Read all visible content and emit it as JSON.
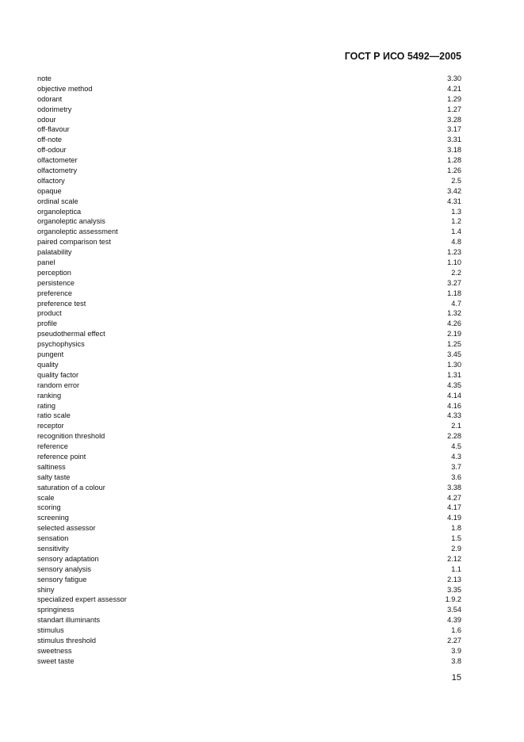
{
  "header": {
    "title": "ГОСТ Р ИСО 5492—2005"
  },
  "entries": [
    {
      "term": "note",
      "ref": "3.30"
    },
    {
      "term": "objective method",
      "ref": "4.21"
    },
    {
      "term": "odorant",
      "ref": "1.29"
    },
    {
      "term": "odorimetry",
      "ref": "1.27"
    },
    {
      "term": "odour",
      "ref": "3.28"
    },
    {
      "term": "off-flavour",
      "ref": "3.17"
    },
    {
      "term": "off-note",
      "ref": "3.31"
    },
    {
      "term": "off-odour",
      "ref": "3.18"
    },
    {
      "term": "olfactometer",
      "ref": "1.28"
    },
    {
      "term": "olfactometry",
      "ref": "1.26"
    },
    {
      "term": "olfactory",
      "ref": "2.5"
    },
    {
      "term": "opaque",
      "ref": "3.42"
    },
    {
      "term": "ordinal scale",
      "ref": "4.31"
    },
    {
      "term": "organoleptica",
      "ref": "1.3"
    },
    {
      "term": "organoleptic analysis",
      "ref": "1.2"
    },
    {
      "term": "organoleptic assessment",
      "ref": "1.4"
    },
    {
      "term": "paired comparison test",
      "ref": "4.8"
    },
    {
      "term": "palatability",
      "ref": "1.23"
    },
    {
      "term": "panel",
      "ref": "1.10"
    },
    {
      "term": "perception",
      "ref": "2.2"
    },
    {
      "term": "persistence",
      "ref": "3.27"
    },
    {
      "term": "preference",
      "ref": "1.18"
    },
    {
      "term": "preference test",
      "ref": "4.7"
    },
    {
      "term": "product",
      "ref": "1.32"
    },
    {
      "term": "profile",
      "ref": "4.26"
    },
    {
      "term": "pseudothermal effect",
      "ref": "2.19"
    },
    {
      "term": "psychophysics",
      "ref": "1.25"
    },
    {
      "term": "pungent",
      "ref": "3.45"
    },
    {
      "term": "quality",
      "ref": "1.30"
    },
    {
      "term": "quality factor",
      "ref": "1.31"
    },
    {
      "term": "random error",
      "ref": "4.35"
    },
    {
      "term": "ranking",
      "ref": "4.14"
    },
    {
      "term": "rating",
      "ref": "4.16"
    },
    {
      "term": "ratio scale",
      "ref": "4.33"
    },
    {
      "term": "receptor",
      "ref": "2.1"
    },
    {
      "term": "recognition threshold",
      "ref": "2.28"
    },
    {
      "term": "reference",
      "ref": "4.5"
    },
    {
      "term": "reference point",
      "ref": "4.3"
    },
    {
      "term": "saltiness",
      "ref": "3.7"
    },
    {
      "term": "salty taste",
      "ref": "3.6"
    },
    {
      "term": "saturation of a colour",
      "ref": "3.38"
    },
    {
      "term": "scale",
      "ref": "4.27"
    },
    {
      "term": "scoring",
      "ref": "4.17"
    },
    {
      "term": "screening",
      "ref": "4.19"
    },
    {
      "term": "selected assessor",
      "ref": "1.8"
    },
    {
      "term": "sensation",
      "ref": "1.5"
    },
    {
      "term": "sensitivity",
      "ref": "2.9"
    },
    {
      "term": "sensory adaptation",
      "ref": "2.12"
    },
    {
      "term": "sensory analysis",
      "ref": "1.1"
    },
    {
      "term": "sensory fatigue",
      "ref": "2.13"
    },
    {
      "term": "shiny",
      "ref": "3.35"
    },
    {
      "term": "specialized expert assessor",
      "ref": "1.9.2"
    },
    {
      "term": "springiness",
      "ref": "3.54"
    },
    {
      "term": "standart illuminants",
      "ref": "4.39"
    },
    {
      "term": "stimulus",
      "ref": "1.6"
    },
    {
      "term": "stimulus threshold",
      "ref": "2.27"
    },
    {
      "term": "sweetness",
      "ref": "3.9"
    },
    {
      "term": "sweet taste",
      "ref": "3.8"
    }
  ],
  "footer": {
    "page_number": "15"
  }
}
